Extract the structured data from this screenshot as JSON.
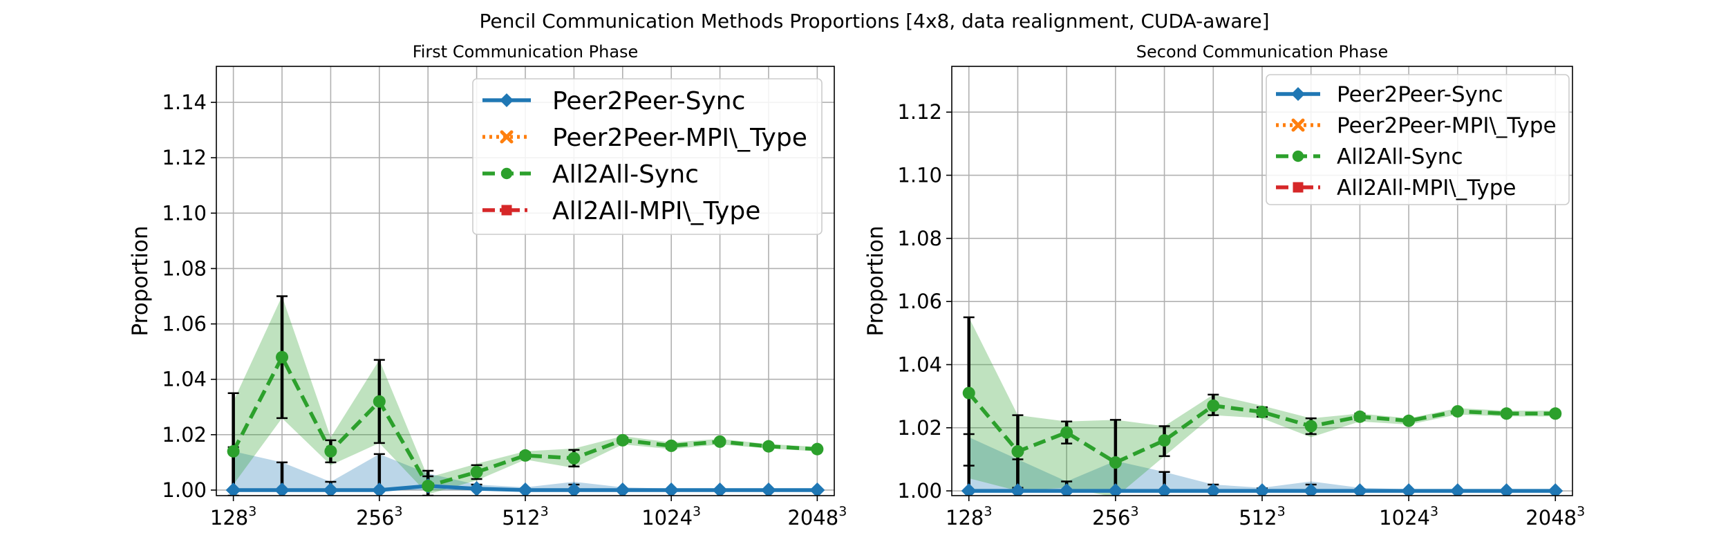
{
  "figure": {
    "suptitle": "Pencil Communication Methods Proportions [4x8, data realignment, CUDA-aware]"
  },
  "chart_data": [
    {
      "type": "line",
      "title": "First Communication Phase",
      "xlabel": "",
      "ylabel": "Proportion",
      "x_tick_positions": [
        0,
        3,
        6,
        9,
        12
      ],
      "x_tick_labels": [
        {
          "base": "128",
          "exp": "3"
        },
        {
          "base": "256",
          "exp": "3"
        },
        {
          "base": "512",
          "exp": "3"
        },
        {
          "base": "1024",
          "exp": "3"
        },
        {
          "base": "2048",
          "exp": "3"
        }
      ],
      "xlim": [
        -0.35,
        12.35
      ],
      "ylim": [
        0.998,
        1.153
      ],
      "y_ticks": [
        "1.00",
        "1.02",
        "1.04",
        "1.06",
        "1.08",
        "1.10",
        "1.12",
        "1.14"
      ],
      "grid": true,
      "legend_position": "top-right",
      "series": [
        {
          "name": "Peer2Peer-Sync",
          "color": "#1f77b4",
          "marker": "diamond",
          "linestyle": "solid",
          "x": [
            0,
            1,
            2,
            3,
            4,
            5,
            6,
            7,
            8,
            9,
            10,
            11,
            12
          ],
          "values": [
            1.0,
            1.0,
            1.0,
            1.0,
            1.0015,
            1.0005,
            1.0,
            1.0,
            1.0,
            1.0,
            1.0,
            1.0,
            1.0
          ],
          "err_high": [
            1.0155,
            1.01,
            1.003,
            1.013,
            1.007,
            1.002,
            1.0005,
            1.002,
            1.0005,
            1.0003,
            1.0002,
            1.0002,
            1.0002
          ],
          "band_high": [
            1.014,
            1.01,
            1.003,
            1.013,
            1.006,
            1.002,
            1.001,
            1.003,
            1.001,
            1.0005,
            1.0003,
            1.0003,
            1.0003
          ],
          "band_low": [
            1.0,
            1.0,
            1.0,
            1.0,
            1.0,
            1.0,
            1.0,
            1.0,
            1.0,
            1.0,
            1.0,
            1.0,
            1.0
          ]
        },
        {
          "name": "Peer2Peer-MPI\\_Type",
          "color": "#ff7f0e",
          "marker": "x",
          "linestyle": "dotted",
          "x": [],
          "values": []
        },
        {
          "name": "All2All-Sync",
          "color": "#2ca02c",
          "marker": "circle",
          "linestyle": "dashed",
          "x": [
            0,
            1,
            2,
            3,
            4,
            5,
            6,
            7,
            8,
            9,
            10,
            11,
            12
          ],
          "values": [
            1.014,
            1.048,
            1.014,
            1.032,
            1.0015,
            1.0065,
            1.0125,
            1.0115,
            1.018,
            1.016,
            1.0175,
            1.0158,
            1.0148
          ],
          "err_low": [
            0.998,
            1.026,
            1.01,
            1.017,
            0.998,
            1.004,
            1.0115,
            1.0085,
            1.017,
            1.015,
            1.0168,
            1.0152,
            1.0142
          ],
          "err_high": [
            1.035,
            1.07,
            1.018,
            1.047,
            1.005,
            1.009,
            1.0135,
            1.0145,
            1.019,
            1.017,
            1.0182,
            1.0164,
            1.0154
          ],
          "band_low": [
            1.002,
            1.026,
            1.009,
            1.017,
            0.9985,
            1.0035,
            1.011,
            1.008,
            1.0165,
            1.0148,
            1.0165,
            1.015,
            1.014
          ],
          "band_high": [
            1.032,
            1.07,
            1.019,
            1.047,
            1.0045,
            1.0095,
            1.014,
            1.015,
            1.0195,
            1.0172,
            1.0185,
            1.0166,
            1.0156
          ]
        },
        {
          "name": "All2All-MPI\\_Type",
          "color": "#d62728",
          "marker": "square",
          "linestyle": "dashdot",
          "x": [],
          "values": []
        }
      ]
    },
    {
      "type": "line",
      "title": "Second Communication Phase",
      "xlabel": "",
      "ylabel": "Proportion",
      "x_tick_positions": [
        0,
        3,
        6,
        9,
        12
      ],
      "x_tick_labels": [
        {
          "base": "128",
          "exp": "3"
        },
        {
          "base": "256",
          "exp": "3"
        },
        {
          "base": "512",
          "exp": "3"
        },
        {
          "base": "1024",
          "exp": "3"
        },
        {
          "base": "2048",
          "exp": "3"
        }
      ],
      "xlim": [
        -0.35,
        12.35
      ],
      "ylim": [
        0.9985,
        1.1345
      ],
      "y_ticks": [
        "1.00",
        "1.02",
        "1.04",
        "1.06",
        "1.08",
        "1.10",
        "1.12"
      ],
      "grid": true,
      "legend_position": "top-right",
      "series": [
        {
          "name": "Peer2Peer-Sync",
          "color": "#1f77b4",
          "marker": "diamond",
          "linestyle": "solid",
          "x": [
            0,
            1,
            2,
            3,
            4,
            5,
            6,
            7,
            8,
            9,
            10,
            11,
            12
          ],
          "values": [
            1.0,
            1.0,
            1.0,
            1.0,
            1.0,
            1.0,
            1.0,
            1.0,
            1.0,
            1.0,
            1.0,
            1.0,
            1.0
          ],
          "err_high": [
            1.018,
            1.01,
            1.003,
            1.0095,
            1.006,
            1.002,
            1.0008,
            1.002,
            1.0005,
            1.0003,
            1.0002,
            1.0002,
            1.0002
          ],
          "band_high": [
            1.017,
            1.01,
            1.003,
            1.0095,
            1.006,
            1.002,
            1.001,
            1.003,
            1.001,
            1.0005,
            1.0003,
            1.0003,
            1.0003
          ],
          "band_low": [
            1.0,
            1.0,
            1.0,
            1.0,
            1.0,
            1.0,
            1.0,
            1.0,
            1.0,
            1.0,
            1.0,
            1.0,
            1.0
          ]
        },
        {
          "name": "Peer2Peer-MPI\\_Type",
          "color": "#ff7f0e",
          "marker": "x",
          "linestyle": "dotted",
          "x": [],
          "values": []
        },
        {
          "name": "All2All-Sync",
          "color": "#2ca02c",
          "marker": "circle",
          "linestyle": "dashed",
          "x": [
            0,
            1,
            2,
            3,
            4,
            5,
            6,
            7,
            8,
            9,
            10,
            11,
            12
          ],
          "values": [
            1.031,
            1.0125,
            1.0185,
            1.009,
            1.016,
            1.027,
            1.025,
            1.0205,
            1.0235,
            1.0222,
            1.0252,
            1.0245,
            1.0245
          ],
          "err_low": [
            1.008,
            1.001,
            1.015,
            0.996,
            1.011,
            1.024,
            1.0235,
            1.018,
            1.0225,
            1.0215,
            1.0245,
            1.0238,
            1.0238
          ],
          "err_high": [
            1.055,
            1.024,
            1.022,
            1.0225,
            1.0205,
            1.0305,
            1.0265,
            1.023,
            1.0245,
            1.0229,
            1.0259,
            1.0252,
            1.0252
          ],
          "band_low": [
            1.004,
            1.0,
            1.001,
            0.998,
            1.011,
            1.024,
            1.023,
            1.017,
            1.022,
            1.021,
            1.0242,
            1.0236,
            1.0236
          ],
          "band_high": [
            1.055,
            1.024,
            1.022,
            1.0225,
            1.0205,
            1.0305,
            1.027,
            1.023,
            1.0245,
            1.023,
            1.0262,
            1.0254,
            1.0254
          ]
        },
        {
          "name": "All2All-MPI\\_Type",
          "color": "#d62728",
          "marker": "square",
          "linestyle": "dashdot",
          "x": [],
          "values": []
        }
      ]
    }
  ]
}
